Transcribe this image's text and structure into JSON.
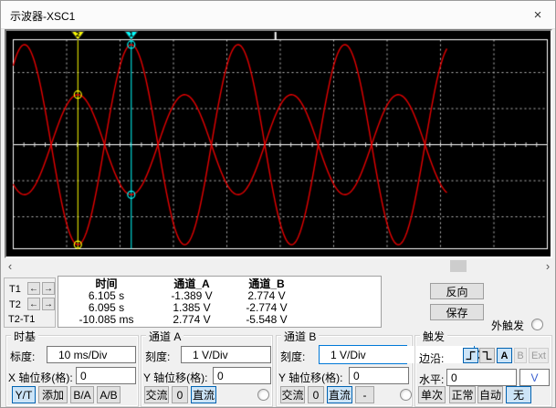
{
  "window": {
    "title": "示波器-XSC1"
  },
  "icons": {
    "close": "×",
    "scroll_left": "‹",
    "scroll_right": "›",
    "cursor_left": "←",
    "cursor_right": "→"
  },
  "colors": {
    "trace": "#e60000",
    "cursor1": "#00ffff",
    "cursor2": "#ffff00",
    "active_bg": "#cce4f7",
    "active_border": "#0062b1"
  },
  "chart_data": {
    "type": "line",
    "title": "Oscilloscope display: two opposite-phase 50 Hz sine traces (Channel B = -2 x Channel A)",
    "x_axis": {
      "scale": "10 ms/Div",
      "divisions": 10,
      "t_left_s": 6.0829,
      "t_right_s": 6.1829,
      "data_end_s": 6.1641
    },
    "y_axis": {
      "scale": "1 V/Div",
      "visible_half_range_div": 2.91,
      "gridlines_div": [
        1,
        2
      ]
    },
    "series": [
      {
        "name": "通道_A",
        "color": "#e60000",
        "amplitude_v": 1.387,
        "period_s": 0.02,
        "positive_zero_cross_s": 6.09
      },
      {
        "name": "通道_B",
        "color": "#e60000",
        "amplitude_v": 2.774,
        "period_s": 0.02,
        "positive_zero_cross_s": 6.1
      }
    ],
    "cursors": [
      {
        "id": "2",
        "color": "#ffff00",
        "time_s": 6.095
      },
      {
        "id": "1",
        "color": "#00ffff",
        "time_s": 6.105
      }
    ],
    "trigger_marker_time_s": 6.132,
    "legend_position": "none",
    "grid": "dashed"
  },
  "measurements": {
    "row_labels": [
      "T1",
      "T2",
      "T2-T1"
    ],
    "headers": [
      "时间",
      "通道_A",
      "通道_B"
    ],
    "rows": [
      [
        "6.105 s",
        "-1.389 V",
        "2.774 V"
      ],
      [
        "6.095 s",
        "1.385 V",
        "-2.774 V"
      ],
      [
        "-10.085 ms",
        "2.774 V",
        "-5.548 V"
      ]
    ],
    "reverse_btn": "反向",
    "save_btn": "保存",
    "ext_trigger_label": "外触发"
  },
  "timebase": {
    "title": "时基",
    "scale_label": "标度:",
    "scale_value": "10 ms/Div",
    "offset_label": "X 轴位移(格):",
    "offset_value": "0",
    "buttons": [
      "Y/T",
      "添加",
      "B/A",
      "A/B"
    ]
  },
  "channel_a": {
    "title": "通道 A",
    "scale_label": "刻度:",
    "scale_value": "1 V/Div",
    "offset_label": "Y 轴位移(格):",
    "offset_value": "0",
    "buttons": [
      "交流",
      "0",
      "直流"
    ]
  },
  "channel_b": {
    "title": "通道 B",
    "scale_label": "刻度:",
    "scale_value": "1 V/Div",
    "offset_label": "Y 轴位移(格):",
    "offset_value": "0",
    "buttons": [
      "交流",
      "0",
      "直流",
      "-"
    ]
  },
  "trigger": {
    "title": "触发",
    "edge_label": "边沿:",
    "source_buttons": [
      "A",
      "B",
      "Ext"
    ],
    "level_label": "水平:",
    "level_value": "0",
    "level_unit": "V",
    "mode_buttons": [
      "单次",
      "正常",
      "自动",
      "无"
    ]
  }
}
